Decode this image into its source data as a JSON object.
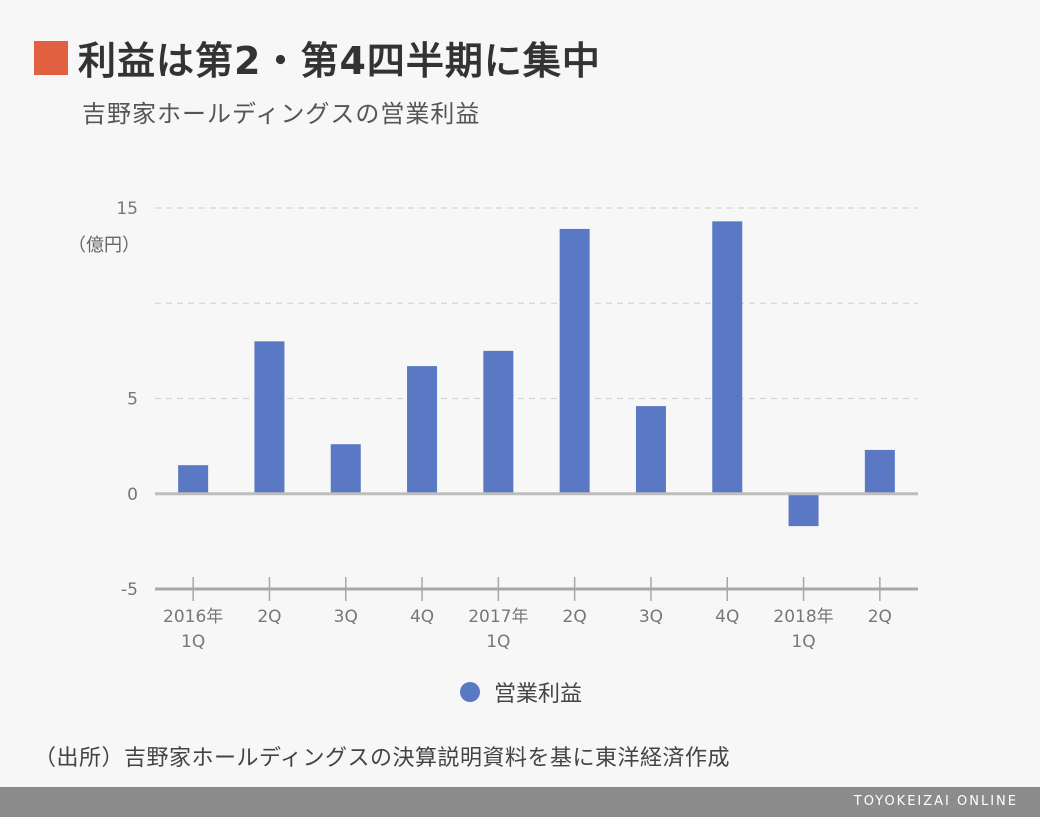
{
  "title": "利益は第2・第4四半期に集中",
  "subtitle": "吉野家ホールディングスの営業利益",
  "unit": "（億円）",
  "legend_label": "営業利益",
  "source": "（出所）吉野家ホールディングスの決算説明資料を基に東洋経済作成",
  "footer_brand": "TOYOKEIZAI ONLINE",
  "colors": {
    "accent": "#e06040",
    "bar": "#5b78c4",
    "background": "#f7f7f7",
    "footer": "#8c8c8c"
  },
  "chart_data": {
    "type": "bar",
    "title": "利益は第2・第4四半期に集中",
    "subtitle": "吉野家ホールディングスの営業利益",
    "ylabel": "（億円）",
    "ylim": [
      -5,
      15
    ],
    "yticks": [
      "15",
      "5",
      "0",
      "-5"
    ],
    "grid": true,
    "legend_placement": "bottom",
    "categories": [
      [
        "2016年",
        "1Q"
      ],
      [
        "2Q"
      ],
      [
        "3Q"
      ],
      [
        "4Q"
      ],
      [
        "2017年",
        "1Q"
      ],
      [
        "2Q"
      ],
      [
        "3Q"
      ],
      [
        "4Q"
      ],
      [
        "2018年",
        "1Q"
      ],
      [
        "2Q"
      ]
    ],
    "series": [
      {
        "name": "営業利益",
        "values": [
          1.5,
          8.0,
          2.6,
          6.7,
          7.5,
          13.9,
          4.6,
          14.3,
          -1.7,
          2.3
        ]
      }
    ]
  }
}
